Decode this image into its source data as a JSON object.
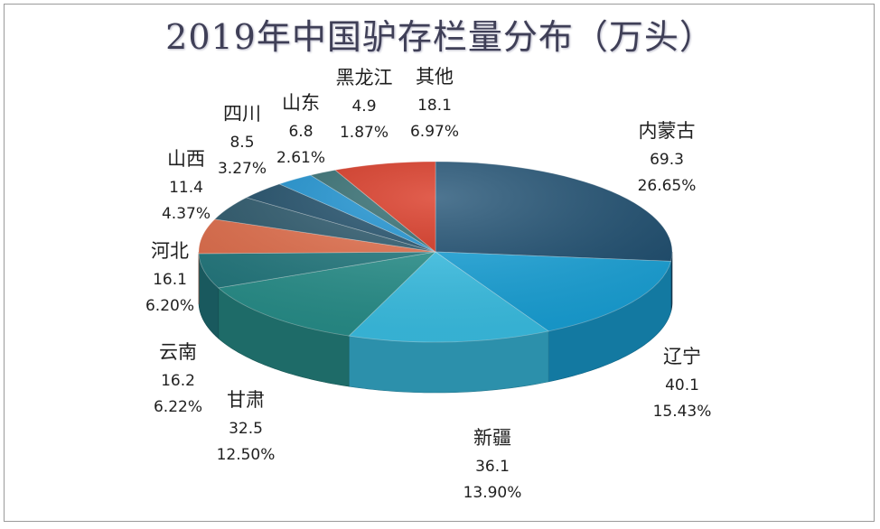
{
  "chart_data": {
    "type": "pie",
    "title": "2019年中国驴存栏量分布（万头）",
    "slices": [
      {
        "name": "内蒙古",
        "value": 69.3,
        "percent": "26.65%",
        "color": "#1d4f72"
      },
      {
        "name": "辽宁",
        "value": 40.1,
        "percent": "15.43%",
        "color": "#1aa8e0"
      },
      {
        "name": "新疆",
        "value": 36.1,
        "percent": "13.90%",
        "color": "#3dc8ee"
      },
      {
        "name": "甘肃",
        "value": 32.5,
        "percent": "12.50%",
        "color": "#2a9590"
      },
      {
        "name": "云南",
        "value": 16.2,
        "percent": "6.22%",
        "color": "#237c82"
      },
      {
        "name": "河北",
        "value": 16.1,
        "percent": "6.20%",
        "color": "#e8704c"
      },
      {
        "name": "山西",
        "value": 11.4,
        "percent": "4.37%",
        "color": "#2c5a6e"
      },
      {
        "name": "四川",
        "value": 8.5,
        "percent": "3.27%",
        "color": "#1e4e6a"
      },
      {
        "name": "山东",
        "value": 6.8,
        "percent": "2.61%",
        "color": "#1a93d4"
      },
      {
        "name": "黑龙江",
        "value": 4.9,
        "percent": "1.87%",
        "color": "#2f6b6f"
      },
      {
        "name": "其他",
        "value": 18.1,
        "percent": "6.97%",
        "color": "#d9311c"
      }
    ]
  }
}
